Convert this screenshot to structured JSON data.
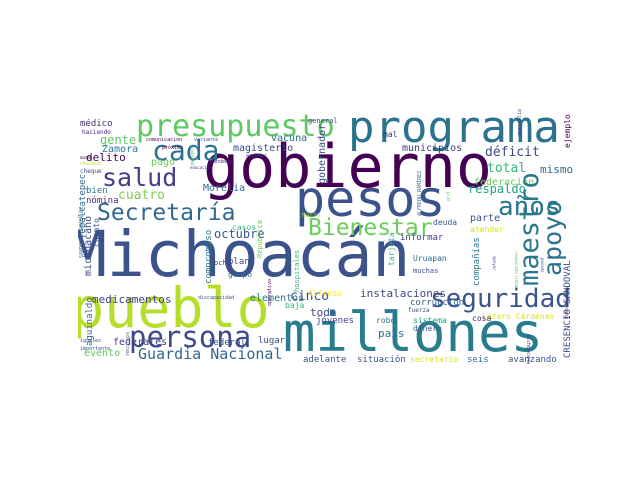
{
  "word_cloud": {
    "words": [
      {
        "text": "Michoacán",
        "color": "#3b528b"
      },
      {
        "text": "gobierno",
        "color": "#440154"
      },
      {
        "text": "programa",
        "color": "#2c728e"
      },
      {
        "text": "pueblo",
        "color": "#b5de2b"
      },
      {
        "text": "millones",
        "color": "#287c8e"
      },
      {
        "text": "pesos",
        "color": "#3b528b"
      },
      {
        "text": "presupuesto",
        "color": "#5ec962"
      },
      {
        "text": "persona",
        "color": "#3e4a89"
      },
      {
        "text": "Secretaría",
        "color": "#31688e"
      },
      {
        "text": "seguridad",
        "color": "#39568c"
      },
      {
        "text": "maestro",
        "color": "#2a788e"
      },
      {
        "text": "apoyo",
        "color": "#2c728e"
      },
      {
        "text": "cada",
        "color": "#2c728e"
      },
      {
        "text": "salud",
        "color": "#433e85"
      },
      {
        "text": "años",
        "color": "#2a788e"
      },
      {
        "text": "Bienestar",
        "color": "#6ccd5a"
      },
      {
        "text": "Guardia Nacional",
        "color": "#31688e"
      },
      {
        "text": "octubre",
        "color": "#38588c"
      },
      {
        "text": "cuatro",
        "color": "#7ad151"
      },
      {
        "text": "déficit",
        "color": "#3e4a89"
      },
      {
        "text": "respaldo",
        "color": "#1fa088"
      },
      {
        "text": "total",
        "color": "#35b779"
      },
      {
        "text": "mismo",
        "color": "#31688e"
      },
      {
        "text": "gente",
        "color": "#5ec962"
      },
      {
        "text": "delito",
        "color": "#440154"
      },
      {
        "text": "Zamora",
        "color": "#2a788e"
      },
      {
        "text": "pago",
        "color": "#6ccd5a"
      },
      {
        "text": "bien",
        "color": "#2a788e"
      },
      {
        "text": "nómina",
        "color": "#482878"
      },
      {
        "text": "municipios",
        "color": "#443983"
      },
      {
        "text": "magisterio",
        "color": "#3e4a89"
      },
      {
        "text": "vacuna",
        "color": "#31688e"
      },
      {
        "text": "comunicación",
        "color": "#440154"
      },
      {
        "text": "variante",
        "color": "#3e4a89"
      },
      {
        "text": "médico",
        "color": "#472d7b"
      },
      {
        "text": "haciendo",
        "color": "#482878"
      },
      {
        "text": "general",
        "color": "#3e4a89"
      },
      {
        "text": "mal",
        "color": "#472d7b"
      },
      {
        "text": "gobernador",
        "color": "#3e4a89"
      },
      {
        "text": "ejemplo",
        "color": "#440154"
      },
      {
        "text": "domicilio",
        "color": "#443983"
      },
      {
        "text": "chaleco",
        "color": "#bddf26"
      },
      {
        "text": "cheque",
        "color": "#3e4a89"
      },
      {
        "text": "educación",
        "color": "#443983"
      },
      {
        "text": "próximo",
        "color": "#440154"
      },
      {
        "text": "acceder",
        "color": "#3e4a89"
      },
      {
        "text": "federación",
        "color": "#6ccd5a"
      },
      {
        "text": "parte",
        "color": "#3b528b"
      },
      {
        "text": "atender",
        "color": "#d8e219"
      },
      {
        "text": "Lázaro Cárdenas",
        "color": "#d8e219"
      },
      {
        "text": "informar",
        "color": "#433e85"
      },
      {
        "text": "deuda",
        "color": "#38588c"
      },
      {
        "text": "compañías",
        "color": "#2a788e"
      },
      {
        "text": "instalaciones",
        "color": "#3e4a89"
      },
      {
        "text": "cinco",
        "color": "#3b528b"
      },
      {
        "text": "toda",
        "color": "#3e4a89"
      },
      {
        "text": "Uruapan",
        "color": "#2c728e"
      },
      {
        "text": "muchas",
        "color": "#3b528b"
      },
      {
        "text": "corrupción",
        "color": "#31688e"
      },
      {
        "text": "robo",
        "color": "#2c728e"
      },
      {
        "text": "sistema",
        "color": "#1f9e89"
      },
      {
        "text": "cosa",
        "color": "#482878"
      },
      {
        "text": "país",
        "color": "#2c728e"
      },
      {
        "text": "fuerza",
        "color": "#3b528b"
      },
      {
        "text": "dinero",
        "color": "#3b528b"
      },
      {
        "text": "seis",
        "color": "#2c728e"
      },
      {
        "text": "avanzando",
        "color": "#3b528b"
      },
      {
        "text": "situación",
        "color": "#3b528b"
      },
      {
        "text": "secretario",
        "color": "#d8e219"
      },
      {
        "text": "adelante",
        "color": "#3b528b"
      },
      {
        "text": "jóvenes",
        "color": "#443983"
      },
      {
        "text": "lugar",
        "color": "#3e4a89"
      },
      {
        "text": "Alfredo",
        "color": "#fde725"
      },
      {
        "text": "baja",
        "color": "#35b779"
      },
      {
        "text": "elementos",
        "color": "#2c728e"
      },
      {
        "text": "medicamentos",
        "color": "#433e85"
      },
      {
        "text": "evento",
        "color": "#5ec962"
      },
      {
        "text": "federales",
        "color": "#433e85"
      },
      {
        "text": "federal",
        "color": "#3b528b"
      },
      {
        "text": "grupo",
        "color": "#31688e"
      },
      {
        "text": "plan",
        "color": "#3e4a89"
      },
      {
        "text": "ocho",
        "color": "#443983"
      },
      {
        "text": "casos",
        "color": "#35b779"
      },
      {
        "text": "compromiso",
        "color": "#2a788e"
      },
      {
        "text": "Morelia",
        "color": "#31688e"
      },
      {
        "text": "michoacano",
        "color": "#3e4a89"
      },
      {
        "text": "aguinaldo",
        "color": "#31688e"
      },
      {
        "text": "Tepalcatepec",
        "color": "#31688e"
      },
      {
        "text": "cuanto",
        "color": "#3b528b"
      },
      {
        "text": "hospitales",
        "color": "#35b779"
      },
      {
        "text": "República",
        "color": "#6ccd5a"
      },
      {
        "text": "tarjeta",
        "color": "#35b779"
      },
      {
        "text": "Marzo",
        "color": "#a0da39"
      },
      {
        "text": "CRESENCIO SANDOVAL",
        "color": "#3e4a89"
      },
      {
        "text": "SANDOVAL GONZÁLEZ",
        "color": "#31688e"
      },
      {
        "text": "ALFREDO RAMÍREZ",
        "color": "#31688e"
      },
      {
        "text": "michoacana",
        "color": "#443983"
      },
      {
        "text": "importante",
        "color": "#3b528b"
      },
      {
        "text": "discapacidad",
        "color": "#3b528b"
      },
      {
        "text": "operativo",
        "color": "#440154"
      },
      {
        "text": "recursos",
        "color": "#3b528b"
      },
      {
        "text": "pandemia",
        "color": "#443983"
      },
      {
        "text": "iguales",
        "color": "#3b528b"
      },
      {
        "text": "problema",
        "color": "#35b779"
      },
      {
        "text": "pide",
        "color": "#5ec962"
      },
      {
        "text": "responsabilidad",
        "color": "#5ec962"
      },
      {
        "text": "apoyar",
        "color": "#3b528b"
      },
      {
        "text": "mandó",
        "color": "#440154"
      },
      {
        "text": "pasado",
        "color": "#3b528b"
      },
      {
        "text": "ciudadanos",
        "color": "#6ccd5a"
      }
    ]
  }
}
